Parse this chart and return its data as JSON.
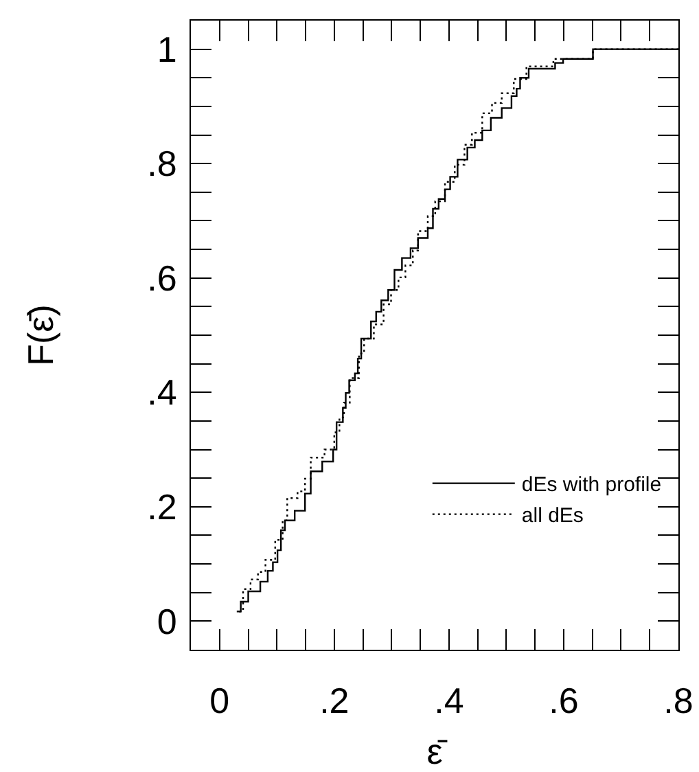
{
  "chart_data": {
    "type": "step",
    "xlabel": "ε̄",
    "ylabel": "F(ε̄)",
    "xlim": [
      -0.05,
      0.8
    ],
    "ylim": [
      -0.05,
      1.05
    ],
    "xticks": [
      {
        "value": 0,
        "label": "0"
      },
      {
        "value": 0.05,
        "label": null
      },
      {
        "value": 0.1,
        "label": null
      },
      {
        "value": 0.15,
        "label": null
      },
      {
        "value": 0.2,
        "label": ".2"
      },
      {
        "value": 0.25,
        "label": null
      },
      {
        "value": 0.3,
        "label": null
      },
      {
        "value": 0.35,
        "label": null
      },
      {
        "value": 0.4,
        "label": ".4"
      },
      {
        "value": 0.45,
        "label": null
      },
      {
        "value": 0.5,
        "label": null
      },
      {
        "value": 0.55,
        "label": null
      },
      {
        "value": 0.6,
        "label": ".6"
      },
      {
        "value": 0.65,
        "label": null
      },
      {
        "value": 0.7,
        "label": null
      },
      {
        "value": 0.75,
        "label": null
      },
      {
        "value": 0.8,
        "label": ".8"
      }
    ],
    "yticks": [
      {
        "value": 0,
        "label": "0"
      },
      {
        "value": 0.05,
        "label": null
      },
      {
        "value": 0.1,
        "label": null
      },
      {
        "value": 0.15,
        "label": null
      },
      {
        "value": 0.2,
        "label": ".2"
      },
      {
        "value": 0.25,
        "label": null
      },
      {
        "value": 0.3,
        "label": null
      },
      {
        "value": 0.35,
        "label": null
      },
      {
        "value": 0.4,
        "label": ".4"
      },
      {
        "value": 0.45,
        "label": null
      },
      {
        "value": 0.5,
        "label": null
      },
      {
        "value": 0.55,
        "label": null
      },
      {
        "value": 0.6,
        "label": ".6"
      },
      {
        "value": 0.65,
        "label": null
      },
      {
        "value": 0.7,
        "label": null
      },
      {
        "value": 0.75,
        "label": null
      },
      {
        "value": 0.8,
        "label": ".8"
      },
      {
        "value": 0.85,
        "label": null
      },
      {
        "value": 0.9,
        "label": null
      },
      {
        "value": 0.95,
        "label": null
      },
      {
        "value": 1,
        "label": "1"
      }
    ],
    "grid": false,
    "legend": "bottom right",
    "series": [
      {
        "name": "dEs with profile",
        "color": "#000000",
        "line_style": "solid",
        "x": [
          0.03,
          0.037,
          0.05,
          0.071,
          0.084,
          0.093,
          0.101,
          0.107,
          0.114,
          0.131,
          0.149,
          0.159,
          0.179,
          0.198,
          0.204,
          0.215,
          0.22,
          0.226,
          0.236,
          0.241,
          0.247,
          0.264,
          0.273,
          0.282,
          0.294,
          0.305,
          0.318,
          0.333,
          0.346,
          0.363,
          0.372,
          0.382,
          0.393,
          0.402,
          0.415,
          0.432,
          0.445,
          0.458,
          0.473,
          0.492,
          0.509,
          0.518,
          0.524,
          0.539,
          0.585,
          0.599,
          0.651,
          0.8
        ],
        "values": [
          0.017,
          0.034,
          0.052,
          0.069,
          0.088,
          0.103,
          0.124,
          0.159,
          0.176,
          0.193,
          0.223,
          0.262,
          0.279,
          0.3,
          0.348,
          0.373,
          0.399,
          0.421,
          0.433,
          0.459,
          0.494,
          0.524,
          0.541,
          0.561,
          0.579,
          0.614,
          0.635,
          0.652,
          0.67,
          0.687,
          0.721,
          0.738,
          0.755,
          0.777,
          0.807,
          0.828,
          0.841,
          0.858,
          0.88,
          0.897,
          0.918,
          0.931,
          0.95,
          0.966,
          0.976,
          0.983,
          1.0,
          1.0
        ]
      },
      {
        "name": "all dEs",
        "color": "#000000",
        "line_style": "dotted",
        "x": [
          0.034,
          0.041,
          0.054,
          0.067,
          0.08,
          0.097,
          0.11,
          0.118,
          0.136,
          0.149,
          0.159,
          0.183,
          0.2,
          0.209,
          0.217,
          0.227,
          0.243,
          0.252,
          0.269,
          0.286,
          0.299,
          0.312,
          0.324,
          0.337,
          0.346,
          0.363,
          0.376,
          0.393,
          0.41,
          0.427,
          0.44,
          0.458,
          0.475,
          0.492,
          0.513,
          0.535,
          0.582,
          0.651,
          0.8
        ],
        "values": [
          0.017,
          0.056,
          0.073,
          0.086,
          0.107,
          0.142,
          0.176,
          0.215,
          0.227,
          0.249,
          0.286,
          0.3,
          0.33,
          0.356,
          0.382,
          0.425,
          0.468,
          0.494,
          0.519,
          0.554,
          0.579,
          0.601,
          0.622,
          0.648,
          0.682,
          0.708,
          0.734,
          0.768,
          0.798,
          0.833,
          0.854,
          0.888,
          0.906,
          0.923,
          0.948,
          0.97,
          0.983,
          1.0,
          1.0
        ]
      }
    ]
  }
}
